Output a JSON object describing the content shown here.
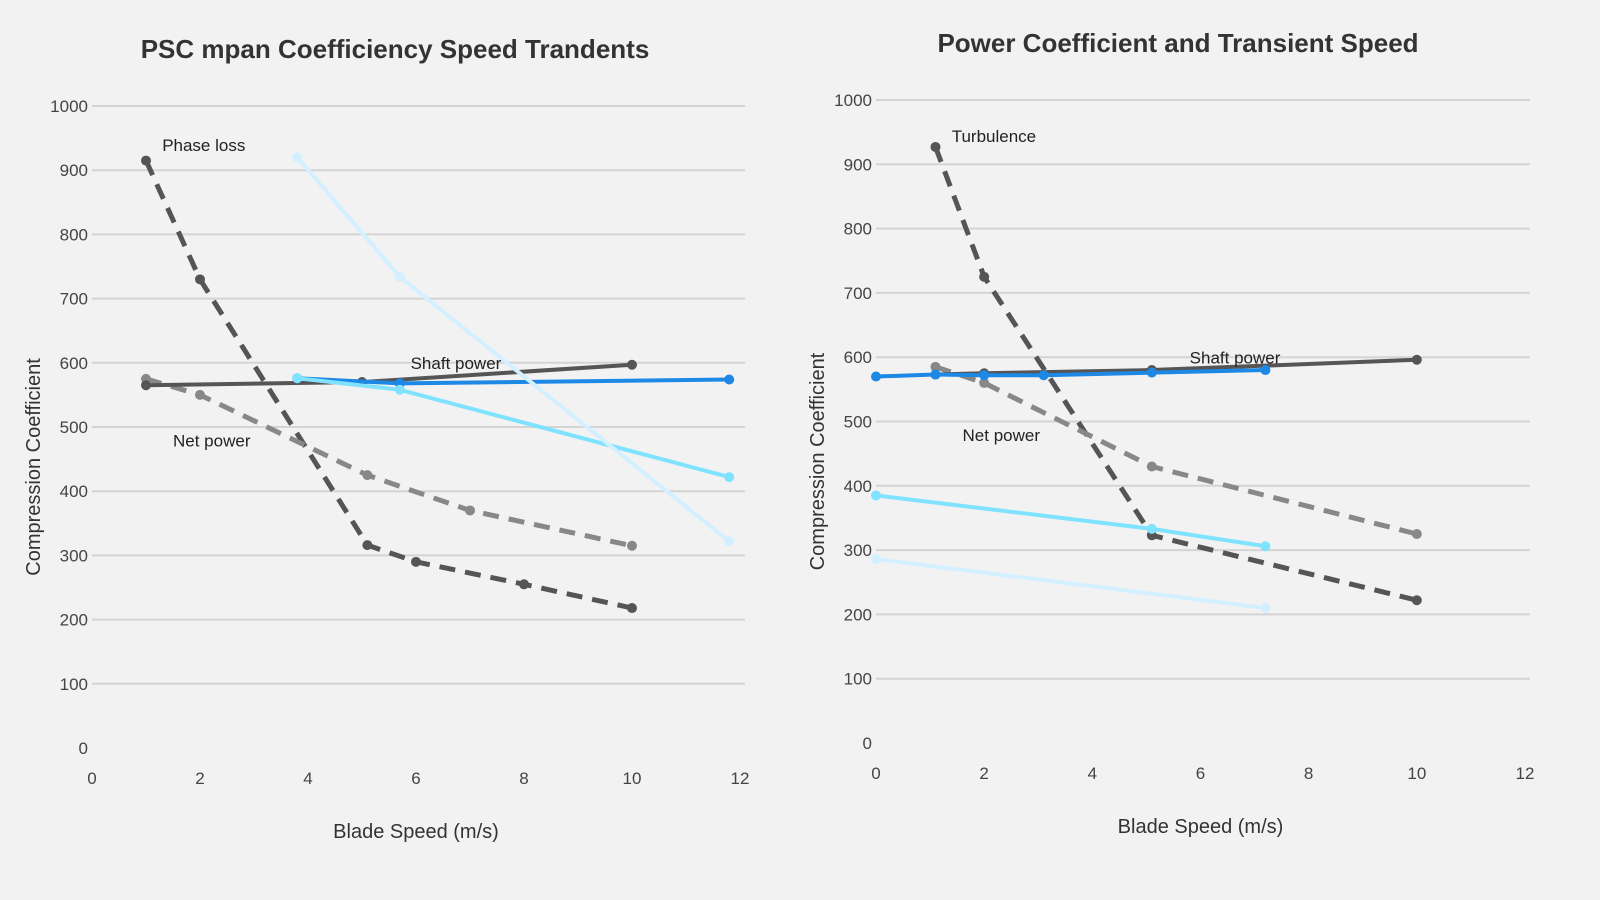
{
  "chart_data": [
    {
      "type": "line",
      "title": "PSC mpan Coefficiency Speed Trandents",
      "xlabel": "Blade Speed (m/s)",
      "ylabel": "Compression Coefficient",
      "xlim": [
        0,
        12
      ],
      "ylim": [
        0,
        1000
      ],
      "xticks": [
        "0",
        "2",
        "4",
        "6",
        "8",
        "10",
        "12"
      ],
      "yticks": [
        "0",
        "100",
        "200",
        "300",
        "400",
        "500",
        "600",
        "700",
        "800",
        "900",
        "1000"
      ],
      "grid": true,
      "annotations": [
        {
          "text": "Phase loss",
          "x": 1.3,
          "y": 930
        },
        {
          "text": "Shaft power",
          "x": 5.9,
          "y": 590
        },
        {
          "text": "Net power",
          "x": 1.5,
          "y": 470
        }
      ],
      "series": [
        {
          "color": "#555555",
          "dash": true,
          "x": [
            1,
            2,
            5.1,
            6,
            8,
            10
          ],
          "y": [
            915,
            730,
            316,
            290,
            255,
            218
          ]
        },
        {
          "color": "#888888",
          "dash": true,
          "x": [
            1,
            2,
            5.1,
            7,
            10
          ],
          "y": [
            575,
            550,
            425,
            370,
            315
          ]
        },
        {
          "color": "#555555",
          "dash": false,
          "x": [
            1,
            5,
            10
          ],
          "y": [
            565,
            570,
            597
          ]
        },
        {
          "color": "#1e88e5",
          "dash": false,
          "x": [
            3.8,
            5.7,
            11.8
          ],
          "y": [
            576,
            568,
            574
          ]
        },
        {
          "color": "#7fe3ff",
          "dash": false,
          "x": [
            3.8,
            5.7,
            11.8
          ],
          "y": [
            576,
            558,
            422
          ]
        },
        {
          "color": "#d2f0ff",
          "dash": false,
          "x": [
            3.8,
            5.7,
            11.8
          ],
          "y": [
            920,
            734,
            322
          ]
        }
      ]
    },
    {
      "type": "line",
      "title": "Power Coefficient and Transient Speed",
      "xlabel": "Blade Speed (m/s)",
      "ylabel": "Compression Coefficient",
      "xlim": [
        0,
        12
      ],
      "ylim": [
        0,
        1000
      ],
      "xticks": [
        "0",
        "2",
        "4",
        "6",
        "8",
        "10",
        "12"
      ],
      "yticks": [
        "0",
        "100",
        "200",
        "300",
        "400",
        "500",
        "600",
        "700",
        "800",
        "900",
        "1000"
      ],
      "grid": true,
      "annotations": [
        {
          "text": "Turbulence",
          "x": 1.4,
          "y": 935
        },
        {
          "text": "Shaft power",
          "x": 5.8,
          "y": 590
        },
        {
          "text": "Net power",
          "x": 1.6,
          "y": 470
        }
      ],
      "series": [
        {
          "color": "#555555",
          "dash": true,
          "x": [
            1.1,
            2,
            5.1,
            10
          ],
          "y": [
            927,
            725,
            323,
            222
          ]
        },
        {
          "color": "#888888",
          "dash": true,
          "x": [
            1.1,
            2,
            5.1,
            10
          ],
          "y": [
            585,
            560,
            430,
            325
          ]
        },
        {
          "color": "#555555",
          "dash": false,
          "x": [
            1.1,
            2,
            5.1,
            10
          ],
          "y": [
            573,
            575,
            580,
            596
          ]
        },
        {
          "color": "#1e88e5",
          "dash": false,
          "x": [
            0,
            1.1,
            2,
            3.1,
            5.1,
            7.2
          ],
          "y": [
            570,
            573,
            572,
            572,
            576,
            580
          ]
        },
        {
          "color": "#7fe3ff",
          "dash": false,
          "x": [
            0,
            5.1,
            7.2
          ],
          "y": [
            385,
            333,
            306
          ]
        },
        {
          "color": "#d2f0ff",
          "dash": false,
          "x": [
            0,
            7.2
          ],
          "y": [
            286,
            210
          ]
        }
      ]
    }
  ]
}
